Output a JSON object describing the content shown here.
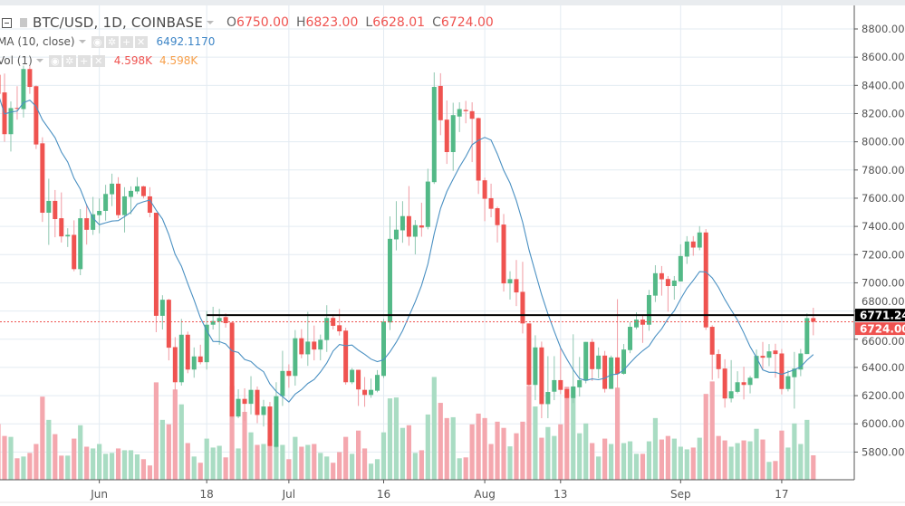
{
  "legend": {
    "symbol": "BTC/USD, 1D, COINBASE",
    "open_label": "O",
    "open": "6750.00",
    "high_label": "H",
    "high": "6823.00",
    "low_label": "L",
    "low": "6628.01",
    "close_label": "C",
    "close": "6724.00",
    "ma_name": "MA (10, close)",
    "ma_value": "6492.1170",
    "vol_name": "Vol (1)",
    "vol_value": "4.598K",
    "vol_ma_value": "4.598K",
    "icons": [
      "eye-icon",
      "gear-icon",
      "plus-icon",
      "close-icon"
    ]
  },
  "colors": {
    "up": "#53b987",
    "down": "#ef5350",
    "up_vol": "#a9dcc3",
    "down_vol": "#f4a7ae",
    "ma": "#4a90c2",
    "grid": "#e3ebf2",
    "hline": "#000000",
    "vol_ma_text": "#f7a04b"
  },
  "chart_data": {
    "type": "candlestick",
    "title": "BTC/USD, 1D, COINBASE",
    "ylim": [
      5620,
      8950
    ],
    "y_ticks": [
      5800,
      6000,
      6200,
      6400,
      6600,
      6800,
      7000,
      7200,
      7400,
      7600,
      7800,
      8000,
      8200,
      8400,
      8600,
      8800
    ],
    "x_ticks": [
      {
        "index": 16,
        "label": "Jun"
      },
      {
        "index": 33,
        "label": "18"
      },
      {
        "index": 46,
        "label": "Jul"
      },
      {
        "index": 61,
        "label": "16"
      },
      {
        "index": 77,
        "label": "Aug"
      },
      {
        "index": 89,
        "label": "13"
      },
      {
        "index": 108,
        "label": "Sep"
      },
      {
        "index": 124,
        "label": "17"
      }
    ],
    "horizontal_line": {
      "price": 6771.24,
      "label": "6771.24",
      "start_index": 33
    },
    "last_price": {
      "price": 6724.0,
      "label": "6724.00"
    },
    "ma_period": 10,
    "columns": [
      "open",
      "high",
      "low",
      "close",
      "volume_k"
    ],
    "candles": [
      [
        8475,
        8500,
        8330,
        8340,
        10.49
      ],
      [
        8350,
        8484,
        8000,
        8054,
        8.24
      ],
      [
        8054,
        8286,
        7931,
        8239,
        8.07
      ],
      [
        8240,
        8394,
        8157,
        8236,
        4.04
      ],
      [
        8232,
        8540,
        8172,
        8516,
        4.37
      ],
      [
        8516,
        8540,
        8340,
        8389,
        5.05
      ],
      [
        8394,
        8400,
        7949,
        7981,
        6.73
      ],
      [
        7989,
        8032,
        7432,
        7497,
        15.64
      ],
      [
        7497,
        7738,
        7269,
        7581,
        11.27
      ],
      [
        7581,
        7658,
        7323,
        7452,
        8.58
      ],
      [
        7458,
        7641,
        7286,
        7329,
        4.54
      ],
      [
        7329,
        7387,
        7254,
        7340,
        4.54
      ],
      [
        7340,
        7443,
        7082,
        7097,
        7.74
      ],
      [
        7097,
        7523,
        7054,
        7458,
        10.26
      ],
      [
        7458,
        7555,
        7271,
        7376,
        6.22
      ],
      [
        7376,
        7609,
        7340,
        7486,
        5.89
      ],
      [
        7480,
        7598,
        7351,
        7510,
        6.73
      ],
      [
        7510,
        7695,
        7441,
        7630,
        4.88
      ],
      [
        7628,
        7774,
        7544,
        7703,
        5.05
      ],
      [
        7703,
        7749,
        7458,
        7480,
        5.89
      ],
      [
        7480,
        7678,
        7357,
        7613,
        5.55
      ],
      [
        7609,
        7684,
        7486,
        7652,
        5.55
      ],
      [
        7648,
        7749,
        7630,
        7684,
        4.77
      ],
      [
        7684,
        7688,
        7598,
        7615,
        3.87
      ],
      [
        7613,
        7678,
        7465,
        7497,
        2.69
      ],
      [
        7497,
        7497,
        6650,
        6766,
        18.33
      ],
      [
        6766,
        6912,
        6669,
        6880,
        11.27
      ],
      [
        6880,
        6886,
        6450,
        6540,
        10.43
      ],
      [
        6544,
        6615,
        6235,
        6295,
        16.99
      ],
      [
        6295,
        6744,
        6271,
        6632,
        14.19
      ],
      [
        6632,
        6654,
        6359,
        6385,
        6.9
      ],
      [
        6385,
        6542,
        6327,
        6478,
        4.37
      ],
      [
        6478,
        6561,
        6422,
        6437,
        3.2
      ],
      [
        6437,
        6800,
        6385,
        6703,
        7.74
      ],
      [
        6703,
        6830,
        6669,
        6729,
        6.06
      ],
      [
        6725,
        6815,
        6561,
        6751,
        6.39
      ],
      [
        6757,
        6783,
        6682,
        6714,
        4.21
      ],
      [
        6718,
        6725,
        6041,
        6052,
        17.66
      ],
      [
        6052,
        6245,
        6041,
        6177,
        5.89
      ],
      [
        6177,
        6252,
        6020,
        6142,
        12.78
      ],
      [
        6142,
        6338,
        6067,
        6241,
        8.92
      ],
      [
        6241,
        6265,
        6005,
        6063,
        6.56
      ],
      [
        6063,
        6170,
        5981,
        6123,
        6.73
      ],
      [
        6123,
        6155,
        5837,
        5843,
        7.57
      ],
      [
        5837,
        6295,
        5830,
        6196,
        6.56
      ],
      [
        6196,
        6518,
        6127,
        6375,
        6.56
      ],
      [
        6375,
        6422,
        6256,
        6340,
        3.87
      ],
      [
        6340,
        6665,
        6271,
        6607,
        8.07
      ],
      [
        6607,
        6671,
        6465,
        6493,
        6.22
      ],
      [
        6493,
        6794,
        6411,
        6583,
        6.56
      ],
      [
        6583,
        6697,
        6450,
        6527,
        6.73
      ],
      [
        6527,
        6633,
        6450,
        6596,
        5.05
      ],
      [
        6594,
        6841,
        6510,
        6751,
        4.37
      ],
      [
        6751,
        6777,
        6669,
        6695,
        3.2
      ],
      [
        6699,
        6815,
        6626,
        6656,
        5.21
      ],
      [
        6661,
        6682,
        6278,
        6295,
        8.07
      ],
      [
        6295,
        6396,
        6282,
        6383,
        4.88
      ],
      [
        6383,
        6383,
        6127,
        6244,
        9.25
      ],
      [
        6241,
        6332,
        6121,
        6205,
        5.89
      ],
      [
        6205,
        6321,
        6185,
        6241,
        3.03
      ],
      [
        6235,
        6381,
        6224,
        6347,
        3.87
      ],
      [
        6340,
        6745,
        6325,
        6725,
        8.92
      ],
      [
        6719,
        7471,
        6665,
        7312,
        15.31
      ],
      [
        7308,
        7579,
        7230,
        7377,
        15.48
      ],
      [
        7372,
        7579,
        7284,
        7473,
        9.76
      ],
      [
        7473,
        7686,
        7263,
        7327,
        10.26
      ],
      [
        7327,
        7445,
        7202,
        7409,
        5.05
      ],
      [
        7407,
        7568,
        7327,
        7392,
        5.55
      ],
      [
        7396,
        7809,
        7379,
        7718,
        12.28
      ],
      [
        7714,
        8492,
        7701,
        8389,
        19.34
      ],
      [
        8396,
        8486,
        8047,
        8153,
        14.47
      ],
      [
        8157,
        8293,
        7843,
        7927,
        11.61
      ],
      [
        7927,
        8277,
        7794,
        8189,
        11.77
      ],
      [
        8179,
        8280,
        8069,
        8232,
        4.04
      ],
      [
        8226,
        8290,
        8131,
        8217,
        4.21
      ],
      [
        8217,
        8280,
        7856,
        8163,
        10.43
      ],
      [
        8168,
        8172,
        7630,
        7725,
        12.45
      ],
      [
        7727,
        7746,
        7437,
        7596,
        11.61
      ],
      [
        7600,
        7703,
        7465,
        7525,
        6.73
      ],
      [
        7529,
        7540,
        7286,
        7409,
        10.93
      ],
      [
        7413,
        7488,
        6938,
        6996,
        9.76
      ],
      [
        6996,
        7082,
        6882,
        7026,
        6.28
      ],
      [
        7026,
        7162,
        6835,
        6932,
        8.75
      ],
      [
        6936,
        7149,
        6641,
        6712,
        10.93
      ],
      [
        6712,
        6712,
        6270,
        6276,
        17.66
      ],
      [
        6276,
        6628,
        6168,
        6542,
        13.79
      ],
      [
        6542,
        6583,
        6040,
        6140,
        7.91
      ],
      [
        6140,
        6480,
        6040,
        6226,
        9.92
      ],
      [
        6228,
        6480,
        6168,
        6310,
        8.24
      ],
      [
        6310,
        6534,
        6211,
        6241,
        10.43
      ],
      [
        6246,
        6260,
        6170,
        6183,
        17.49
      ],
      [
        6183,
        6635,
        6147,
        6265,
        17.49
      ],
      [
        6259,
        6474,
        6194,
        6310,
        8.75
      ],
      [
        6306,
        6581,
        6287,
        6581,
        10.6
      ],
      [
        6581,
        6603,
        6304,
        6388,
        6.9
      ],
      [
        6388,
        6542,
        6323,
        6484,
        4.37
      ],
      [
        6484,
        6517,
        6222,
        6248,
        7.74
      ],
      [
        6248,
        6484,
        6248,
        6471,
        6.73
      ],
      [
        6471,
        6884,
        6254,
        6355,
        17.33
      ],
      [
        6355,
        6566,
        6349,
        6527,
        6.9
      ],
      [
        6523,
        6720,
        6501,
        6688,
        7.23
      ],
      [
        6684,
        6791,
        6671,
        6739,
        4.88
      ],
      [
        6739,
        6767,
        6574,
        6703,
        4.88
      ],
      [
        6703,
        6950,
        6660,
        6913,
        7.23
      ],
      [
        6909,
        7125,
        6864,
        7068,
        11.61
      ],
      [
        7068,
        7119,
        6909,
        7025,
        7.57
      ],
      [
        7027,
        7048,
        6795,
        6977,
        8.24
      ],
      [
        6977,
        7048,
        6881,
        7016,
        7.74
      ],
      [
        7010,
        7273,
        7010,
        7190,
        6.22
      ],
      [
        7186,
        7331,
        7134,
        7293,
        5.72
      ],
      [
        7293,
        7331,
        7192,
        7250,
        6.06
      ],
      [
        7250,
        7402,
        7231,
        7357,
        7.91
      ],
      [
        7357,
        7381,
        6666,
        6684,
        16.15
      ],
      [
        6688,
        6699,
        6312,
        6491,
        18.5
      ],
      [
        6495,
        6527,
        6323,
        6388,
        8.24
      ],
      [
        6392,
        6458,
        6115,
        6180,
        7.4
      ],
      [
        6180,
        6452,
        6152,
        6231,
        6.22
      ],
      [
        6227,
        6373,
        6216,
        6295,
        6.9
      ],
      [
        6295,
        6405,
        6173,
        6276,
        7.4
      ],
      [
        6276,
        6340,
        6216,
        6327,
        7.23
      ],
      [
        6323,
        6527,
        6323,
        6482,
        9.59
      ],
      [
        6482,
        6581,
        6388,
        6469,
        7.57
      ],
      [
        6469,
        6566,
        6409,
        6514,
        3.36
      ],
      [
        6520,
        6568,
        6327,
        6495,
        3.53
      ],
      [
        6499,
        6531,
        6209,
        6247,
        9.25
      ],
      [
        6247,
        6381,
        6230,
        6338,
        6.06
      ],
      [
        6331,
        6510,
        6108,
        6392,
        10.6
      ],
      [
        6385,
        6531,
        6338,
        6499,
        6.73
      ],
      [
        6495,
        6783,
        6495,
        6750,
        11.27
      ],
      [
        6750,
        6823,
        6628,
        6724,
        4.598
      ]
    ]
  }
}
